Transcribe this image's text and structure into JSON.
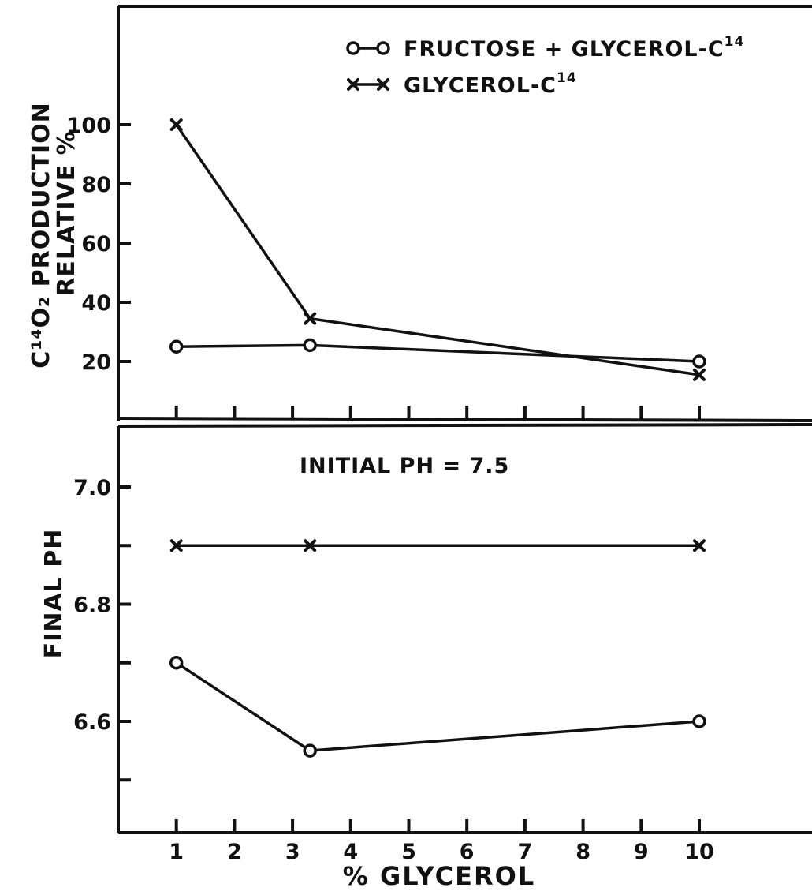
{
  "chart_data": [
    {
      "type": "line",
      "panel": "top",
      "ylabel_line1": "C¹⁴O₂ PRODUCTION",
      "ylabel_line2": "RELATIVE %",
      "ylim": [
        0,
        120
      ],
      "yticks": [
        20,
        40,
        60,
        80,
        100
      ],
      "xlim": [
        0,
        11
      ],
      "xticks": [
        1,
        2,
        3,
        4,
        5,
        6,
        7,
        8,
        9,
        10
      ],
      "legend_position": "top-right",
      "legend": [
        {
          "marker": "circle",
          "label": "FRUCTOSE + GLYCEROL-C",
          "sup": "14"
        },
        {
          "marker": "cross",
          "label": "GLYCEROL-C",
          "sup": "14"
        }
      ],
      "series": [
        {
          "marker": "circle",
          "x": [
            1,
            3.3,
            10
          ],
          "y": [
            25,
            25.5,
            20
          ]
        },
        {
          "marker": "cross",
          "x": [
            1,
            3.3,
            10
          ],
          "y": [
            100,
            34.5,
            15.5
          ]
        }
      ]
    },
    {
      "type": "line",
      "panel": "bottom",
      "ylabel": "FINAL PH",
      "ylim": [
        6.4,
        7.1
      ],
      "yticks": [
        6.5,
        6.6,
        6.7,
        6.8,
        6.9,
        7.0
      ],
      "ytick_labels": [
        "",
        "6.6",
        "",
        "6.8",
        "",
        "7.0"
      ],
      "xlabel": "% GLYCEROL",
      "xlim": [
        0,
        11
      ],
      "xticks": [
        1,
        2,
        3,
        4,
        5,
        6,
        7,
        8,
        9,
        10
      ],
      "xtick_labels": [
        "1",
        "2",
        "3",
        "4",
        "5",
        "6",
        "7",
        "8",
        "9",
        "10"
      ],
      "annotation": "INITIAL PH = 7.5",
      "series": [
        {
          "marker": "circle",
          "x": [
            1,
            3.3,
            10
          ],
          "y": [
            6.7,
            6.55,
            6.6
          ]
        },
        {
          "marker": "cross",
          "x": [
            1,
            3.3,
            10
          ],
          "y": [
            6.9,
            6.9,
            6.9
          ]
        }
      ]
    }
  ]
}
